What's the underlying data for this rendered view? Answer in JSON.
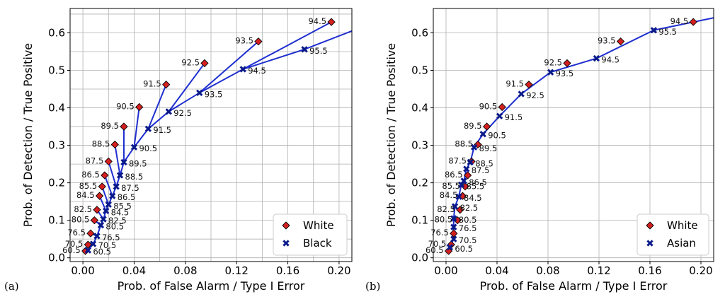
{
  "panels": [
    {
      "tag": "(a)",
      "chart_data": {
        "type": "scatter",
        "title": "",
        "xlabel": "Prob. of False Alarm / Type I Error",
        "ylabel": "Prob. of Detection / True Positive",
        "xlim": [
          -0.01,
          0.21
        ],
        "ylim": [
          -0.01,
          0.665
        ],
        "xticks": [
          0.0,
          0.04,
          0.08,
          0.12,
          0.16,
          0.2
        ],
        "xtick_labels": [
          "0.00",
          "0.04",
          "0.08",
          "0.12",
          "0.16",
          "0.20"
        ],
        "yticks": [
          0.0,
          0.1,
          0.2,
          0.3,
          0.4,
          0.5,
          0.6
        ],
        "ytick_labels": [
          "0.0",
          "0.1",
          "0.2",
          "0.3",
          "0.4",
          "0.5",
          "0.6"
        ],
        "grid_x": [
          0.0,
          0.02,
          0.04,
          0.06,
          0.08,
          0.1,
          0.12,
          0.14,
          0.16,
          0.18,
          0.2
        ],
        "grid_y": [
          0.0,
          0.05,
          0.1,
          0.15,
          0.2,
          0.25,
          0.3,
          0.35,
          0.4,
          0.45,
          0.5,
          0.55,
          0.6,
          0.65
        ],
        "grid": true,
        "legend_position": "bottom-right",
        "series": [
          {
            "name": "White",
            "marker": "diamond",
            "color": "#d62020",
            "points": [
              {
                "label": "60.5",
                "x": 0.002,
                "y": 0.018
              },
              {
                "label": "70.5",
                "x": 0.004,
                "y": 0.035
              },
              {
                "label": "76.5",
                "x": 0.006,
                "y": 0.065
              },
              {
                "label": "80.5",
                "x": 0.009,
                "y": 0.1
              },
              {
                "label": "82.5",
                "x": 0.011,
                "y": 0.128
              },
              {
                "label": "84.5",
                "x": 0.013,
                "y": 0.165
              },
              {
                "label": "85.5",
                "x": 0.015,
                "y": 0.19
              },
              {
                "label": "86.5",
                "x": 0.017,
                "y": 0.22
              },
              {
                "label": "87.5",
                "x": 0.02,
                "y": 0.257
              },
              {
                "label": "88.5",
                "x": 0.025,
                "y": 0.302
              },
              {
                "label": "89.5",
                "x": 0.032,
                "y": 0.35
              },
              {
                "label": "90.5",
                "x": 0.044,
                "y": 0.402
              },
              {
                "label": "91.5",
                "x": 0.065,
                "y": 0.462
              },
              {
                "label": "92.5",
                "x": 0.095,
                "y": 0.519
              },
              {
                "label": "93.5",
                "x": 0.137,
                "y": 0.577
              },
              {
                "label": "94.5",
                "x": 0.194,
                "y": 0.629
              }
            ]
          },
          {
            "name": "Black",
            "marker": "x",
            "color": "#0a1a8a",
            "points": [
              {
                "label": "60.5",
                "x": 0.004,
                "y": 0.02
              },
              {
                "label": "70.5",
                "x": 0.008,
                "y": 0.037
              },
              {
                "label": "76.5",
                "x": 0.011,
                "y": 0.058
              },
              {
                "label": "80.5",
                "x": 0.014,
                "y": 0.087
              },
              {
                "label": "82.5",
                "x": 0.016,
                "y": 0.103
              },
              {
                "label": "84.5",
                "x": 0.018,
                "y": 0.125
              },
              {
                "label": "85.5",
                "x": 0.02,
                "y": 0.142
              },
              {
                "label": "86.5",
                "x": 0.023,
                "y": 0.165
              },
              {
                "label": "87.5",
                "x": 0.026,
                "y": 0.19
              },
              {
                "label": "88.5",
                "x": 0.029,
                "y": 0.22
              },
              {
                "label": "89.5",
                "x": 0.032,
                "y": 0.255
              },
              {
                "label": "90.5",
                "x": 0.04,
                "y": 0.295
              },
              {
                "label": "91.5",
                "x": 0.051,
                "y": 0.344
              },
              {
                "label": "92.5",
                "x": 0.067,
                "y": 0.39
              },
              {
                "label": "93.5",
                "x": 0.091,
                "y": 0.44
              },
              {
                "label": "94.5",
                "x": 0.125,
                "y": 0.503
              },
              {
                "label": "95.5",
                "x": 0.173,
                "y": 0.556
              }
            ]
          }
        ],
        "curve": [
          [
            0.004,
            0.02
          ],
          [
            0.008,
            0.037
          ],
          [
            0.011,
            0.058
          ],
          [
            0.014,
            0.087
          ],
          [
            0.016,
            0.103
          ],
          [
            0.018,
            0.125
          ],
          [
            0.02,
            0.142
          ],
          [
            0.023,
            0.165
          ],
          [
            0.026,
            0.19
          ],
          [
            0.029,
            0.22
          ],
          [
            0.032,
            0.255
          ],
          [
            0.04,
            0.295
          ],
          [
            0.051,
            0.344
          ],
          [
            0.067,
            0.39
          ],
          [
            0.091,
            0.44
          ],
          [
            0.125,
            0.503
          ],
          [
            0.173,
            0.556
          ],
          [
            0.21,
            0.605
          ]
        ],
        "links": [
          [
            [
              0.002,
              0.018
            ],
            [
              0.004,
              0.02
            ]
          ],
          [
            [
              0.004,
              0.035
            ],
            [
              0.008,
              0.037
            ]
          ],
          [
            [
              0.006,
              0.065
            ],
            [
              0.011,
              0.058
            ]
          ],
          [
            [
              0.009,
              0.1
            ],
            [
              0.014,
              0.087
            ]
          ],
          [
            [
              0.011,
              0.128
            ],
            [
              0.016,
              0.103
            ]
          ],
          [
            [
              0.013,
              0.165
            ],
            [
              0.018,
              0.125
            ]
          ],
          [
            [
              0.015,
              0.19
            ],
            [
              0.02,
              0.142
            ]
          ],
          [
            [
              0.017,
              0.22
            ],
            [
              0.023,
              0.165
            ]
          ],
          [
            [
              0.02,
              0.257
            ],
            [
              0.026,
              0.19
            ]
          ],
          [
            [
              0.025,
              0.302
            ],
            [
              0.029,
              0.22
            ]
          ],
          [
            [
              0.032,
              0.35
            ],
            [
              0.032,
              0.255
            ]
          ],
          [
            [
              0.044,
              0.402
            ],
            [
              0.04,
              0.295
            ]
          ],
          [
            [
              0.065,
              0.462
            ],
            [
              0.051,
              0.344
            ]
          ],
          [
            [
              0.095,
              0.519
            ],
            [
              0.067,
              0.39
            ]
          ],
          [
            [
              0.137,
              0.577
            ],
            [
              0.091,
              0.44
            ]
          ],
          [
            [
              0.194,
              0.629
            ],
            [
              0.125,
              0.503
            ]
          ]
        ]
      }
    },
    {
      "tag": "(b)",
      "chart_data": {
        "type": "scatter",
        "title": "",
        "xlabel": "Prob. of False Alarm / Type I Error",
        "ylabel": "Prob. of Detection / True Positive",
        "xlim": [
          -0.01,
          0.21
        ],
        "ylim": [
          -0.01,
          0.665
        ],
        "xticks": [
          0.0,
          0.04,
          0.08,
          0.12,
          0.16,
          0.2
        ],
        "xtick_labels": [
          "0.00",
          "0.04",
          "0.08",
          "0.12",
          "0.16",
          "0.20"
        ],
        "yticks": [
          0.0,
          0.1,
          0.2,
          0.3,
          0.4,
          0.5,
          0.6
        ],
        "ytick_labels": [
          "0.0",
          "0.1",
          "0.2",
          "0.3",
          "0.4",
          "0.5",
          "0.6"
        ],
        "grid_x": [
          0.0,
          0.04,
          0.08,
          0.12,
          0.16,
          0.2
        ],
        "grid_y": [
          0.0,
          0.1,
          0.2,
          0.3,
          0.4,
          0.5,
          0.6
        ],
        "grid": true,
        "legend_position": "bottom-right",
        "series": [
          {
            "name": "White",
            "marker": "diamond",
            "color": "#d62020",
            "points": [
              {
                "label": "60.5",
                "x": 0.002,
                "y": 0.018
              },
              {
                "label": "70.5",
                "x": 0.004,
                "y": 0.035
              },
              {
                "label": "76.5",
                "x": 0.006,
                "y": 0.065
              },
              {
                "label": "80.5",
                "x": 0.009,
                "y": 0.1
              },
              {
                "label": "82.5",
                "x": 0.011,
                "y": 0.128
              },
              {
                "label": "84.5",
                "x": 0.013,
                "y": 0.165
              },
              {
                "label": "85.5",
                "x": 0.015,
                "y": 0.19
              },
              {
                "label": "86.5",
                "x": 0.017,
                "y": 0.22
              },
              {
                "label": "87.5",
                "x": 0.02,
                "y": 0.257
              },
              {
                "label": "88.5",
                "x": 0.025,
                "y": 0.302
              },
              {
                "label": "89.5",
                "x": 0.032,
                "y": 0.35
              },
              {
                "label": "90.5",
                "x": 0.044,
                "y": 0.402
              },
              {
                "label": "91.5",
                "x": 0.065,
                "y": 0.462
              },
              {
                "label": "92.5",
                "x": 0.095,
                "y": 0.519
              },
              {
                "label": "93.5",
                "x": 0.137,
                "y": 0.577
              },
              {
                "label": "94.5",
                "x": 0.194,
                "y": 0.629
              }
            ]
          },
          {
            "name": "Asian",
            "marker": "x",
            "color": "#0a1a8a",
            "points": [
              {
                "label": "60.5",
                "x": 0.003,
                "y": 0.028
              },
              {
                "label": "70.5",
                "x": 0.006,
                "y": 0.05
              },
              {
                "label": "76.5",
                "x": 0.006,
                "y": 0.082
              },
              {
                "label": "80.5",
                "x": 0.006,
                "y": 0.105
              },
              {
                "label": "82.5",
                "x": 0.007,
                "y": 0.137
              },
              {
                "label": "84.5",
                "x": 0.01,
                "y": 0.163
              },
              {
                "label": "85.5",
                "x": 0.012,
                "y": 0.195
              },
              {
                "label": "86.5",
                "x": 0.014,
                "y": 0.205
              },
              {
                "label": "87.5",
                "x": 0.016,
                "y": 0.237
              },
              {
                "label": "88.5",
                "x": 0.019,
                "y": 0.255
              },
              {
                "label": "89.5",
                "x": 0.022,
                "y": 0.295
              },
              {
                "label": "90.5",
                "x": 0.029,
                "y": 0.33
              },
              {
                "label": "91.5",
                "x": 0.042,
                "y": 0.378
              },
              {
                "label": "92.5",
                "x": 0.059,
                "y": 0.437
              },
              {
                "label": "93.5",
                "x": 0.082,
                "y": 0.495
              },
              {
                "label": "94.5",
                "x": 0.118,
                "y": 0.532
              },
              {
                "label": "95.5",
                "x": 0.163,
                "y": 0.607
              }
            ]
          }
        ],
        "curve": [
          [
            0.003,
            0.028
          ],
          [
            0.006,
            0.05
          ],
          [
            0.006,
            0.082
          ],
          [
            0.006,
            0.105
          ],
          [
            0.007,
            0.137
          ],
          [
            0.01,
            0.163
          ],
          [
            0.012,
            0.195
          ],
          [
            0.014,
            0.205
          ],
          [
            0.016,
            0.237
          ],
          [
            0.019,
            0.255
          ],
          [
            0.022,
            0.295
          ],
          [
            0.029,
            0.33
          ],
          [
            0.042,
            0.378
          ],
          [
            0.059,
            0.437
          ],
          [
            0.082,
            0.495
          ],
          [
            0.118,
            0.532
          ],
          [
            0.163,
            0.607
          ],
          [
            0.21,
            0.64
          ]
        ],
        "links": []
      }
    }
  ]
}
